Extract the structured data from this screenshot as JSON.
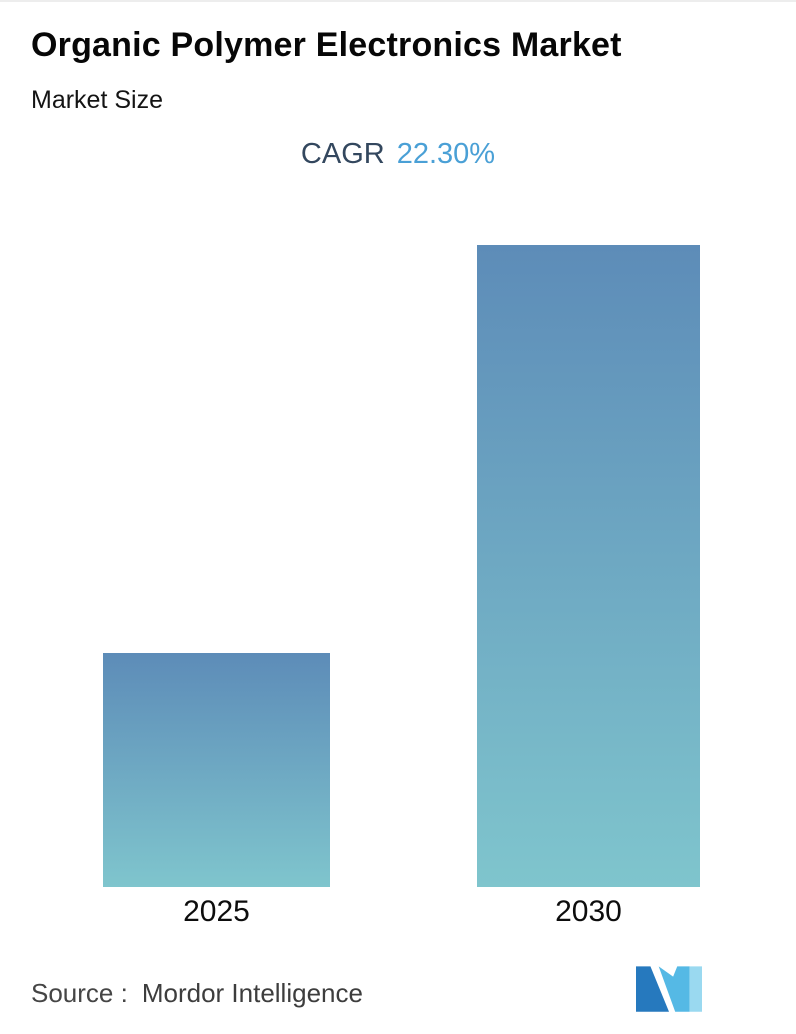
{
  "header": {
    "title": "Organic Polymer Electronics Market",
    "subtitle": "Market Size",
    "cagr_label": "CAGR",
    "cagr_value": "22.30%"
  },
  "chart_data": {
    "type": "bar",
    "title": "Organic Polymer Electronics Market",
    "subtitle": "Market Size",
    "categories": [
      "2025",
      "2030"
    ],
    "values": [
      1,
      2.74
    ],
    "xlabel": "",
    "ylabel": "",
    "ylim": [
      0,
      2.74
    ],
    "grid": false,
    "legend": false,
    "axis_values_shown": false,
    "bar_gradient": [
      "#5d8cb8",
      "#7fc5cd"
    ]
  },
  "footer": {
    "source_label": "Source :",
    "source_value": "Mordor Intelligence",
    "logo": "mordor-intelligence-logo"
  },
  "colors": {
    "cagr_value": "#4aa0d6",
    "cagr_label": "#33475e",
    "title": "#070707",
    "logo_dark_blue": "#2679be",
    "logo_mid_blue": "#55b9e5",
    "logo_light_blue": "#9ad9f0"
  }
}
